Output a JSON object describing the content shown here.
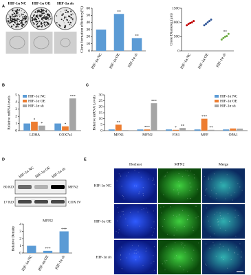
{
  "chart_data": [
    {
      "type": "bar",
      "ylabel": "Clone formation efficiency(%)",
      "categories": [
        "HIF-1α NC",
        "HIF-1α OE",
        "HIF-1α sh"
      ],
      "values": [
        30,
        52,
        18
      ],
      "significance": [
        null,
        "**",
        "**"
      ],
      "color": "#5b9bd5",
      "ylim": [
        0,
        60
      ],
      "yticks": [
        0,
        10,
        20,
        30,
        40,
        50,
        60
      ]
    },
    {
      "type": "dot",
      "ylabel": "Clone Diameter (μm)",
      "categories": [
        "HIF-1α NC",
        "HIF-1α OE",
        "HIF-1α sh"
      ],
      "values": [
        [
          900,
          950,
          980,
          1000,
          1050
        ],
        [
          900,
          950,
          1000,
          1050,
          1100
        ],
        [
          400,
          450,
          500,
          520,
          600
        ]
      ],
      "colors": [
        "#c00000",
        "#2f5597",
        "#70ad47"
      ],
      "significance": [
        null,
        null,
        "**"
      ],
      "ylim": [
        0,
        1500
      ],
      "yticks": [
        0,
        500,
        1000,
        1500
      ]
    },
    {
      "type": "bar",
      "ylabel": "Relative mRNA levels",
      "categories": [
        "LDHA",
        "COX7a1"
      ],
      "series": [
        {
          "name": "HIF-1α NC",
          "color": "#5b9bd5",
          "values": [
            1,
            1
          ],
          "significance": [
            null,
            null
          ]
        },
        {
          "name": "HIF-1α OE",
          "color": "#ed7d31",
          "values": [
            1.25,
            0.6
          ],
          "significance": [
            "*",
            "*"
          ]
        },
        {
          "name": "HIF-1α sh",
          "color": "#a5a5a5",
          "values": [
            0.7,
            4.5
          ],
          "significance": [
            "*",
            "***"
          ]
        }
      ],
      "ylim": [
        0,
        5
      ],
      "yticks": [
        0,
        1,
        2,
        3,
        4,
        5
      ],
      "legend": "top-left"
    },
    {
      "type": "bar",
      "ylabel": "Relative mRNA Levels",
      "categories": [
        "MFN1",
        "MFN2",
        "FIS1",
        "MFF",
        "OPA1"
      ],
      "series": [
        {
          "name": "HIF-1α NC",
          "color": "#5b9bd5",
          "values": [
            1,
            1,
            1,
            1,
            1
          ],
          "significance": [
            null,
            null,
            null,
            null,
            null
          ]
        },
        {
          "name": "HIF-1α OE",
          "color": "#ed7d31",
          "values": [
            5,
            1,
            0.7,
            10,
            1.8
          ],
          "significance": [
            "**",
            "***",
            "*",
            "***",
            null
          ]
        },
        {
          "name": "HIF-1α sh",
          "color": "#a5a5a5",
          "values": [
            0.5,
            23,
            2.2,
            0.7,
            1.6
          ],
          "significance": [
            null,
            "***",
            "**",
            "**",
            null
          ]
        }
      ],
      "ylim": [
        0,
        30
      ],
      "yticks": [
        0,
        5,
        10,
        15,
        20,
        25,
        30
      ],
      "legend": "top-right"
    },
    {
      "type": "bar",
      "title": "MFN2",
      "ylabel": "Relative Density",
      "categories": [
        "HIF-1α NC",
        "HIF-1α OE",
        "HIF-1α sh"
      ],
      "values": [
        1,
        0.3,
        3
      ],
      "significance": [
        null,
        "***",
        "***"
      ],
      "color": "#5b9bd5",
      "ylim": [
        0,
        4
      ],
      "yticks": [
        0,
        1,
        2,
        3,
        4
      ]
    }
  ],
  "figure": {
    "panels": [
      "A",
      "B",
      "C",
      "D",
      "E"
    ],
    "plates": [
      "HIF-1α NC",
      "HIF-1α OE",
      "HIF-1α sh"
    ],
    "blot": {
      "lanes": [
        "HIF-1α NC",
        "HIF-1α OE",
        "HIF-1α sh"
      ],
      "bands": [
        "MFN2",
        "COX IV"
      ],
      "markers": [
        "80 KD",
        "17 KD"
      ]
    },
    "micrographs": {
      "columns": [
        "Hochest",
        "MFN2",
        "Merge"
      ],
      "rows": [
        "HIF-1α NC",
        "HIF-1α OE",
        "HIF-1α sh"
      ]
    }
  }
}
